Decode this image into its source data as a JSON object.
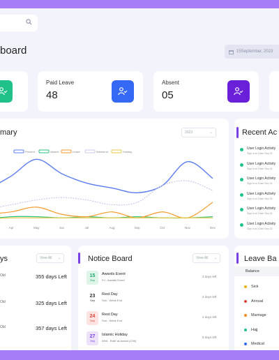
{
  "header": {
    "title": "board",
    "date": "15September, 2023"
  },
  "stats": [
    {
      "title": "Paid Leave",
      "value": "48",
      "color": "#3568f4"
    },
    {
      "title": "Absent",
      "value": "05",
      "color": "#6a1fd8"
    }
  ],
  "summary": {
    "title": "mary",
    "year": "2023",
    "legend": [
      "Present",
      "Absent",
      "Leave",
      "Weekend",
      "Holiday"
    ],
    "months": [
      "Apr",
      "May",
      "Jun",
      "Jul",
      "Aug",
      "Sep",
      "Oct",
      "Nov",
      "Dec"
    ]
  },
  "activity": {
    "title": "Recent Ac",
    "items": [
      {
        "title": "User Login Activity",
        "sub": "Sign in at  10am  Sep 15"
      },
      {
        "title": "User Login Activity",
        "sub": "Sign in at  10am  Sep 15"
      },
      {
        "title": "User Login Activity",
        "sub": "Sign in at  10am  Sep 15"
      },
      {
        "title": "User Login Activity",
        "sub": "Sign in at  10am  Sep 15"
      },
      {
        "title": "User Login Activity",
        "sub": "Sign in at  10am  Sep 15"
      },
      {
        "title": "User Login Activity",
        "sub": "Sign in at  10am  Sep 15"
      }
    ]
  },
  "holidays": {
    "title": "ys",
    "view": "View All",
    "rows": [
      {
        "tag": "Old",
        "value": "355 days Left"
      },
      {
        "tag": "Old",
        "value": "325 days Left"
      },
      {
        "tag": "Old",
        "value": "357 days Left"
      }
    ]
  },
  "notice": {
    "title": "Notice Board",
    "view": "View All",
    "items": [
      {
        "day": "15",
        "month": "Sep",
        "title": "Awards Event",
        "sub": "Fri - Awards Event",
        "days": "3 days left",
        "bg": "#dff5ea",
        "fg": "#1aa56b"
      },
      {
        "day": "23",
        "month": "Sep",
        "title": "Rest Day",
        "sub": "Sun - Week End",
        "days": "3 days left",
        "bg": "#ffffff",
        "fg": "#333333"
      },
      {
        "day": "24",
        "month": "Sep",
        "title": "Rest Day",
        "sub": "Sun - Week End",
        "days": "4 days left",
        "bg": "#fde4e2",
        "fg": "#e0443a"
      },
      {
        "day": "27",
        "month": "Sep",
        "title": "Islamic Holiday",
        "sub": "Wed - Rabi' al-Awwal (12th)",
        "days": "8 days left",
        "bg": "#ece3fb",
        "fg": "#7a3fe4"
      }
    ]
  },
  "balance": {
    "title": "Leave Ba",
    "header": "Balance",
    "rows": [
      {
        "label": "Sick",
        "color": "#e6b400"
      },
      {
        "label": "Annual",
        "color": "#e0443a"
      },
      {
        "label": "Marriage",
        "color": "#f08a24"
      },
      {
        "label": "Hajj",
        "color": "#21c28a"
      },
      {
        "label": "Medical",
        "color": "#3568f4"
      }
    ]
  },
  "chart_data": {
    "type": "line",
    "x": [
      "Mar",
      "Apr",
      "May",
      "Jun",
      "Jul",
      "Aug",
      "Sep",
      "Oct",
      "Nov",
      "Dec"
    ],
    "series": [
      {
        "name": "Present",
        "values": [
          12,
          18,
          25,
          19,
          15,
          13,
          11,
          14,
          24,
          17
        ]
      },
      {
        "name": "Absent",
        "values": [
          0,
          1,
          1,
          0.5,
          1,
          0.5,
          1,
          0.5,
          0.5,
          1
        ]
      },
      {
        "name": "Leave",
        "values": [
          2,
          3,
          5,
          2,
          1,
          3,
          0.5,
          3,
          0.5,
          7
        ]
      },
      {
        "name": "Weekend",
        "values": [
          4,
          6,
          8,
          9,
          8,
          6,
          7,
          14,
          16,
          12
        ]
      },
      {
        "name": "Holiday",
        "values": [
          0,
          0.5,
          0.5,
          0.5,
          0.5,
          0.5,
          0.5,
          0.5,
          0.5,
          0.5
        ]
      }
    ],
    "colors": [
      "#5b7cf0",
      "#25c07e",
      "#f59a2b",
      "#c9c9ee",
      "#e8c94a"
    ],
    "ylim": [
      0,
      28
    ]
  }
}
